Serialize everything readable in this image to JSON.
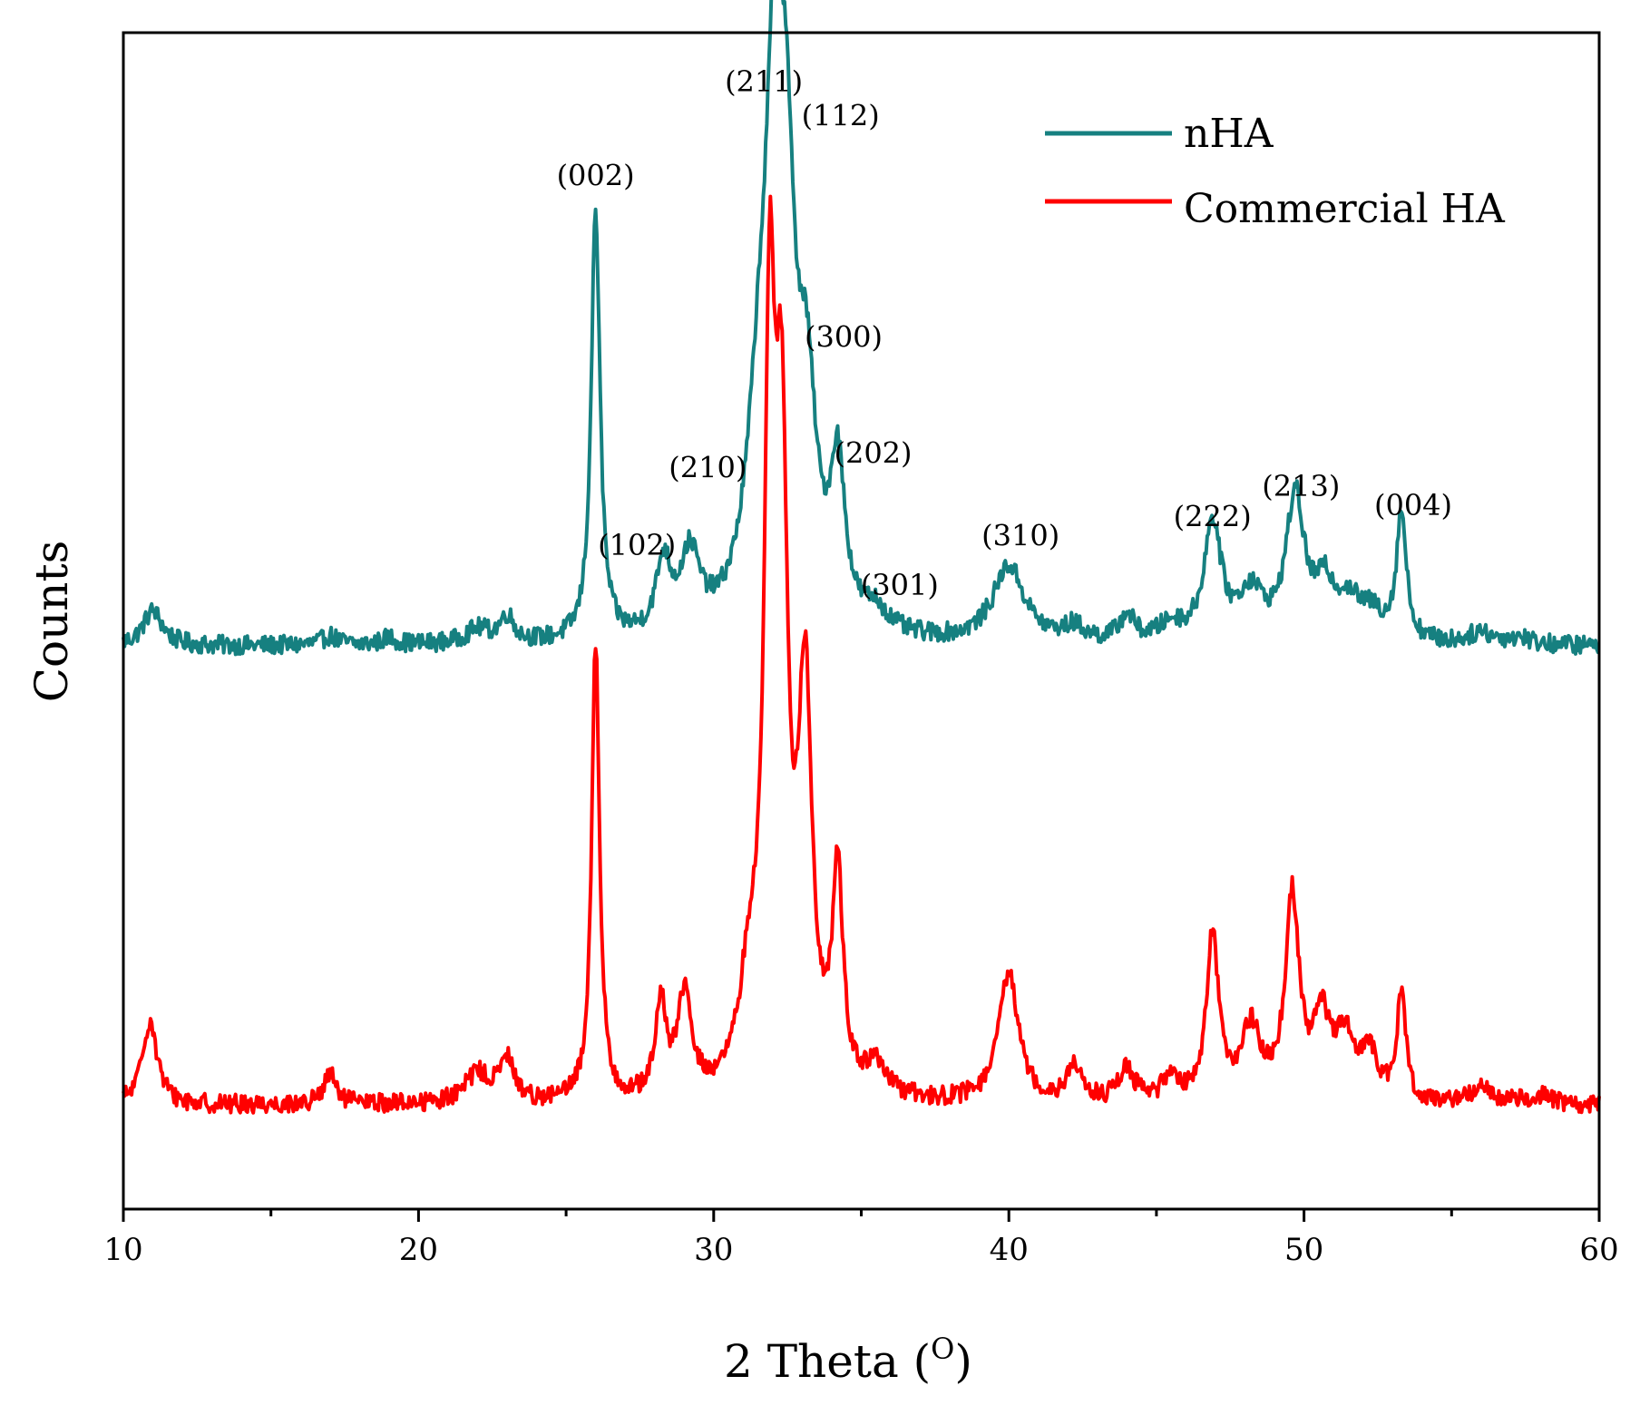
{
  "chart_data": {
    "type": "line",
    "title": "",
    "xlabel": "2 Theta (",
    "xlabel_sup": "O",
    "xlabel_close": ")",
    "ylabel": "Counts",
    "xlim": [
      10,
      60
    ],
    "ylim": [
      0,
      1000
    ],
    "x_ticks": [
      10,
      20,
      30,
      40,
      50,
      60
    ],
    "x_tick_labels": [
      "10",
      "20",
      "30",
      "40",
      "50",
      "60"
    ],
    "legend_position": "top-right",
    "series": [
      {
        "name": "nHA",
        "color": "#168080",
        "baseline": 478,
        "peaks": [
          [
            11.0,
            30,
            0.4
          ],
          [
            17.0,
            8,
            0.3
          ],
          [
            19.0,
            6,
            0.3
          ],
          [
            22.0,
            12,
            0.5
          ],
          [
            23.0,
            22,
            0.3
          ],
          [
            26.0,
            365,
            0.18
          ],
          [
            28.3,
            60,
            0.3
          ],
          [
            29.2,
            65,
            0.4
          ],
          [
            31.6,
            190,
            0.55
          ],
          [
            32.05,
            320,
            0.3
          ],
          [
            32.45,
            310,
            0.35
          ],
          [
            33.15,
            170,
            0.4
          ],
          [
            34.2,
            130,
            0.3
          ],
          [
            35.5,
            18,
            0.5
          ],
          [
            40.0,
            65,
            0.65
          ],
          [
            42.2,
            12,
            0.4
          ],
          [
            44.0,
            22,
            0.3
          ],
          [
            45.5,
            14,
            0.5
          ],
          [
            46.9,
            100,
            0.35
          ],
          [
            48.2,
            40,
            0.5
          ],
          [
            49.7,
            120,
            0.38
          ],
          [
            50.7,
            40,
            0.4
          ],
          [
            51.5,
            30,
            0.5
          ],
          [
            52.3,
            20,
            0.5
          ],
          [
            53.3,
            108,
            0.2
          ],
          [
            56.0,
            10,
            0.5
          ],
          [
            57.3,
            6,
            0.5
          ]
        ]
      },
      {
        "name": "Commercial HA",
        "color": "#ff0000",
        "baseline": 88,
        "peaks": [
          [
            10.9,
            72,
            0.3
          ],
          [
            17.0,
            25,
            0.25
          ],
          [
            22.0,
            25,
            0.5
          ],
          [
            23.0,
            35,
            0.3
          ],
          [
            26.0,
            390,
            0.16
          ],
          [
            28.2,
            80,
            0.2
          ],
          [
            29.0,
            85,
            0.3
          ],
          [
            31.2,
            80,
            0.4
          ],
          [
            31.9,
            590,
            0.22
          ],
          [
            32.3,
            480,
            0.25
          ],
          [
            33.1,
            330,
            0.28
          ],
          [
            34.2,
            180,
            0.22
          ],
          [
            35.5,
            25,
            0.4
          ],
          [
            40.0,
            110,
            0.4
          ],
          [
            42.2,
            30,
            0.3
          ],
          [
            44.0,
            28,
            0.3
          ],
          [
            45.5,
            22,
            0.3
          ],
          [
            46.9,
            140,
            0.25
          ],
          [
            48.2,
            60,
            0.4
          ],
          [
            49.6,
            170,
            0.28
          ],
          [
            50.6,
            65,
            0.35
          ],
          [
            51.4,
            50,
            0.4
          ],
          [
            52.2,
            40,
            0.3
          ],
          [
            53.3,
            90,
            0.18
          ],
          [
            56.0,
            15,
            0.4
          ],
          [
            58.0,
            8,
            0.5
          ]
        ]
      }
    ],
    "annotations": [
      {
        "text": "(002)",
        "x": 26.0,
        "y": 870
      },
      {
        "text": "(211)",
        "x": 31.7,
        "y": 950
      },
      {
        "text": "(112)",
        "x": 34.3,
        "y": 921
      },
      {
        "text": "(300)",
        "x": 34.4,
        "y": 733
      },
      {
        "text": "(202)",
        "x": 35.4,
        "y": 634
      },
      {
        "text": "(210)",
        "x": 29.8,
        "y": 622
      },
      {
        "text": "(102)",
        "x": 27.4,
        "y": 556
      },
      {
        "text": "(301)",
        "x": 36.3,
        "y": 522
      },
      {
        "text": "(310)",
        "x": 40.4,
        "y": 564
      },
      {
        "text": "(222)",
        "x": 46.9,
        "y": 580
      },
      {
        "text": "(213)",
        "x": 49.9,
        "y": 606
      },
      {
        "text": "(004)",
        "x": 53.7,
        "y": 590
      }
    ]
  }
}
